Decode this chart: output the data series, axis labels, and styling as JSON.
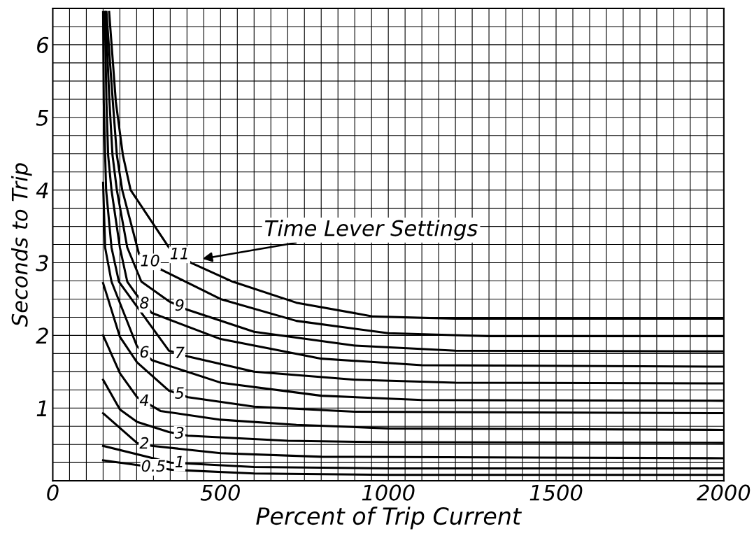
{
  "chart_data": {
    "type": "line",
    "xlabel": "Percent of Trip Current",
    "ylabel": "Seconds to Trip",
    "xlim": [
      0,
      2000
    ],
    "ylim": [
      0,
      6.5
    ],
    "xticks": [
      0,
      {
        "value": 50,
        "label": null
      },
      {
        "value": 100,
        "label": null
      },
      {
        "value": 150,
        "label": null
      },
      {
        "value": 200,
        "label": null
      },
      {
        "value": 250,
        "label": null
      },
      {
        "value": 300,
        "label": null
      },
      {
        "value": 350,
        "label": null
      },
      {
        "value": 400,
        "label": null
      },
      {
        "value": 450,
        "label": null
      },
      500,
      {
        "value": 550,
        "label": null
      },
      {
        "value": 600,
        "label": null
      },
      {
        "value": 650,
        "label": null
      },
      {
        "value": 700,
        "label": null
      },
      {
        "value": 750,
        "label": null
      },
      {
        "value": 800,
        "label": null
      },
      {
        "value": 850,
        "label": null
      },
      {
        "value": 900,
        "label": null
      },
      {
        "value": 950,
        "label": null
      },
      1000,
      {
        "value": 1050,
        "label": null
      },
      {
        "value": 1100,
        "label": null
      },
      {
        "value": 1150,
        "label": null
      },
      {
        "value": 1200,
        "label": null
      },
      {
        "value": 1250,
        "label": null
      },
      {
        "value": 1300,
        "label": null
      },
      {
        "value": 1350,
        "label": null
      },
      {
        "value": 1400,
        "label": null
      },
      {
        "value": 1450,
        "label": null
      },
      1500,
      {
        "value": 1550,
        "label": null
      },
      {
        "value": 1600,
        "label": null
      },
      {
        "value": 1650,
        "label": null
      },
      {
        "value": 1700,
        "label": null
      },
      {
        "value": 1750,
        "label": null
      },
      {
        "value": 1800,
        "label": null
      },
      {
        "value": 1850,
        "label": null
      },
      {
        "value": 1900,
        "label": null
      },
      {
        "value": 1950,
        "label": null
      },
      2000
    ],
    "yticks": [
      {
        "value": 0,
        "label": null
      },
      {
        "value": 0.25,
        "label": null
      },
      {
        "value": 0.5,
        "label": null
      },
      {
        "value": 0.75,
        "label": null
      },
      1,
      {
        "value": 1.25,
        "label": null
      },
      {
        "value": 1.5,
        "label": null
      },
      {
        "value": 1.75,
        "label": null
      },
      2,
      {
        "value": 2.25,
        "label": null
      },
      {
        "value": 2.5,
        "label": null
      },
      {
        "value": 2.75,
        "label": null
      },
      3,
      {
        "value": 3.25,
        "label": null
      },
      {
        "value": 3.5,
        "label": null
      },
      {
        "value": 3.75,
        "label": null
      },
      4,
      {
        "value": 4.25,
        "label": null
      },
      {
        "value": 4.5,
        "label": null
      },
      {
        "value": 4.75,
        "label": null
      },
      5,
      {
        "value": 5.25,
        "label": null
      },
      {
        "value": 5.5,
        "label": null
      },
      {
        "value": 5.75,
        "label": null
      },
      6,
      {
        "value": 6.25,
        "label": null
      },
      {
        "value": 6.5,
        "label": null
      }
    ],
    "grid": true,
    "marker": "none",
    "line_style": "solid",
    "annotations": [
      "Time Lever Settings"
    ],
    "series": [
      {
        "name": "0.5",
        "color": "#000000",
        "x": [
          150,
          245,
          356,
          600,
          1000,
          2000
        ],
        "values": [
          0.28,
          0.22,
          0.15,
          0.1,
          0.08,
          0.08
        ]
      },
      {
        "name": "1",
        "color": "#000000",
        "x": [
          150,
          352,
          600,
          1000,
          2000
        ],
        "values": [
          0.48,
          0.25,
          0.19,
          0.17,
          0.17
        ]
      },
      {
        "name": "2",
        "color": "#000000",
        "x": [
          150,
          251,
          295,
          500,
          800,
          2000
        ],
        "values": [
          0.93,
          0.52,
          0.48,
          0.38,
          0.33,
          0.31
        ]
      },
      {
        "name": "3",
        "color": "#000000",
        "x": [
          150,
          200,
          251,
          346,
          403,
          700,
          1000,
          2000
        ],
        "values": [
          1.39,
          0.98,
          0.81,
          0.67,
          0.62,
          0.55,
          0.53,
          0.52
        ]
      },
      {
        "name": "4",
        "color": "#000000",
        "x": [
          150,
          200,
          251,
          295,
          321,
          500,
          726,
          1000,
          2000
        ],
        "values": [
          2.0,
          1.48,
          1.15,
          1.03,
          0.96,
          0.84,
          0.77,
          0.72,
          0.7
        ]
      },
      {
        "name": "5",
        "color": "#000000",
        "x": [
          150,
          200,
          251,
          346,
          403,
          600,
          900,
          2000
        ],
        "values": [
          2.72,
          1.98,
          1.63,
          1.24,
          1.15,
          1.02,
          0.95,
          0.93
        ]
      },
      {
        "name": "6",
        "color": "#000000",
        "x": [
          150,
          156,
          175,
          251,
          295,
          500,
          800,
          1100,
          2000
        ],
        "values": [
          4.1,
          3.21,
          2.74,
          1.85,
          1.66,
          1.35,
          1.17,
          1.11,
          1.1
        ]
      },
      {
        "name": "7",
        "color": "#000000",
        "x": [
          150,
          152,
          156,
          159,
          175,
          197,
          346,
          403,
          600,
          900,
          1200,
          2000
        ],
        "values": [
          6.45,
          5.21,
          4.48,
          4.0,
          3.21,
          2.74,
          1.79,
          1.71,
          1.5,
          1.39,
          1.35,
          1.34
        ]
      },
      {
        "name": "8",
        "color": "#000000",
        "x": [
          155,
          160,
          165,
          175,
          200,
          222,
          251,
          295,
          500,
          800,
          1100,
          2000
        ],
        "values": [
          6.45,
          5.21,
          4.48,
          4.0,
          3.21,
          2.74,
          2.55,
          2.31,
          1.95,
          1.68,
          1.59,
          1.57
        ]
      },
      {
        "name": "9",
        "color": "#000000",
        "x": [
          157,
          169,
          178,
          191,
          222,
          264,
          346,
          397,
          600,
          900,
          1200,
          2000
        ],
        "values": [
          6.45,
          5.21,
          4.48,
          4.0,
          3.21,
          2.74,
          2.47,
          2.36,
          2.05,
          1.86,
          1.79,
          1.78
        ]
      },
      {
        "name": "10",
        "color": "#000000",
        "x": [
          160,
          179,
          191,
          207,
          257,
          321,
          500,
          726,
          1000,
          1300,
          2000
        ],
        "values": [
          6.45,
          5.21,
          4.48,
          4.0,
          3.12,
          2.91,
          2.5,
          2.2,
          2.03,
          1.99,
          1.99
        ]
      },
      {
        "name": "11",
        "color": "#000000",
        "x": [
          168,
          188,
          209,
          232,
          346,
          412,
          536,
          726,
          955,
          1200,
          2000
        ],
        "values": [
          6.45,
          5.21,
          4.48,
          4.0,
          3.21,
          3.0,
          2.74,
          2.45,
          2.26,
          2.23,
          2.23
        ]
      }
    ]
  }
}
